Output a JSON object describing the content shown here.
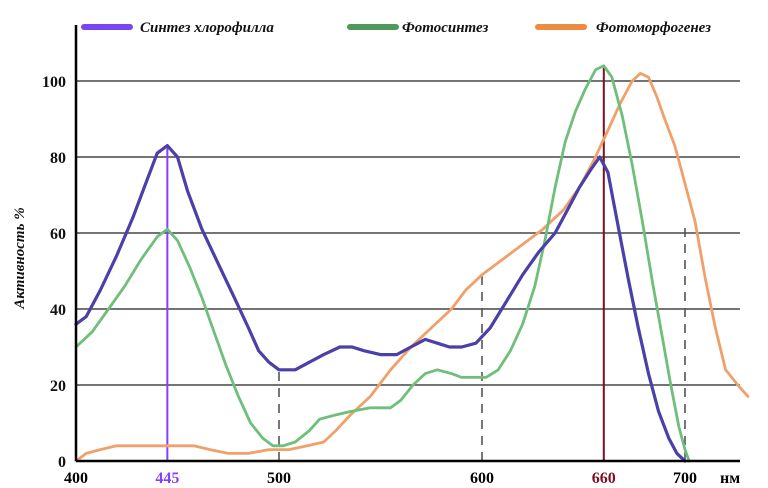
{
  "chart_data": {
    "type": "line",
    "xlabel": "нм",
    "ylabel": "Активность %",
    "xlim": [
      400,
      740
    ],
    "ylim": [
      0,
      110
    ],
    "grid": true,
    "legend_position": "top",
    "x_ticks": [
      {
        "value": 400,
        "label": "400",
        "color": "#000000"
      },
      {
        "value": 445,
        "label": "445",
        "color": "#8a3cff"
      },
      {
        "value": 500,
        "label": "500",
        "color": "#000000"
      },
      {
        "value": 600,
        "label": "600",
        "color": "#000000"
      },
      {
        "value": 660,
        "label": "660",
        "color": "#7a1020"
      },
      {
        "value": 700,
        "label": "700",
        "color": "#000000"
      }
    ],
    "y_ticks": [
      {
        "value": 0,
        "label": "0"
      },
      {
        "value": 20,
        "label": "20"
      },
      {
        "value": 40,
        "label": "40"
      },
      {
        "value": 60,
        "label": "60"
      },
      {
        "value": 80,
        "label": "80"
      },
      {
        "value": 100,
        "label": "100"
      }
    ],
    "markers": [
      {
        "x": 445,
        "color": "#8a3cff",
        "style": "solid",
        "y_top": 83
      },
      {
        "x": 500,
        "color": "#555555",
        "style": "dashed",
        "y_top": 24
      },
      {
        "x": 600,
        "color": "#555555",
        "style": "dashed",
        "y_top": 49
      },
      {
        "x": 660,
        "color": "#7a1020",
        "style": "solid",
        "y_top": 104
      },
      {
        "x": 700,
        "color": "#555555",
        "style": "dashed",
        "y_top": 62
      }
    ],
    "series": [
      {
        "name": "Синтез хлорофилла",
        "color": "#4b3fa8",
        "legend_color": "#7a46f2",
        "points": [
          [
            400,
            36
          ],
          [
            405,
            38
          ],
          [
            412,
            45
          ],
          [
            420,
            54
          ],
          [
            428,
            64
          ],
          [
            435,
            74
          ],
          [
            440,
            81
          ],
          [
            445,
            83
          ],
          [
            450,
            80
          ],
          [
            455,
            71
          ],
          [
            462,
            61
          ],
          [
            470,
            52
          ],
          [
            478,
            43
          ],
          [
            485,
            35
          ],
          [
            490,
            29
          ],
          [
            495,
            26
          ],
          [
            500,
            24
          ],
          [
            508,
            24
          ],
          [
            515,
            26
          ],
          [
            522,
            28
          ],
          [
            530,
            30
          ],
          [
            536,
            30
          ],
          [
            542,
            29
          ],
          [
            550,
            28
          ],
          [
            558,
            28
          ],
          [
            565,
            30
          ],
          [
            572,
            32
          ],
          [
            578,
            31
          ],
          [
            584,
            30
          ],
          [
            590,
            30
          ],
          [
            597,
            31
          ],
          [
            604,
            35
          ],
          [
            612,
            42
          ],
          [
            620,
            49
          ],
          [
            628,
            55
          ],
          [
            636,
            60
          ],
          [
            642,
            66
          ],
          [
            648,
            72
          ],
          [
            654,
            77
          ],
          [
            658,
            80
          ],
          [
            662,
            76
          ],
          [
            667,
            62
          ],
          [
            672,
            48
          ],
          [
            677,
            35
          ],
          [
            682,
            23
          ],
          [
            687,
            13
          ],
          [
            692,
            6
          ],
          [
            696,
            2
          ],
          [
            700,
            0
          ]
        ]
      },
      {
        "name": "Фотосинтез",
        "color": "#6fbf7b",
        "legend_color": "#4f9a5a",
        "points": [
          [
            400,
            30
          ],
          [
            408,
            34
          ],
          [
            416,
            40
          ],
          [
            424,
            46
          ],
          [
            432,
            53
          ],
          [
            440,
            59
          ],
          [
            445,
            61
          ],
          [
            450,
            58
          ],
          [
            456,
            51
          ],
          [
            462,
            43
          ],
          [
            468,
            34
          ],
          [
            474,
            25
          ],
          [
            480,
            17
          ],
          [
            486,
            10
          ],
          [
            492,
            6
          ],
          [
            497,
            4
          ],
          [
            502,
            4
          ],
          [
            508,
            5
          ],
          [
            515,
            8
          ],
          [
            520,
            11
          ],
          [
            527,
            12
          ],
          [
            535,
            13
          ],
          [
            545,
            14
          ],
          [
            555,
            14
          ],
          [
            560,
            16
          ],
          [
            566,
            20
          ],
          [
            572,
            23
          ],
          [
            578,
            24
          ],
          [
            585,
            23
          ],
          [
            590,
            22
          ],
          [
            596,
            22
          ],
          [
            602,
            22
          ],
          [
            608,
            24
          ],
          [
            614,
            29
          ],
          [
            620,
            36
          ],
          [
            626,
            46
          ],
          [
            631,
            58
          ],
          [
            636,
            72
          ],
          [
            641,
            84
          ],
          [
            646,
            92
          ],
          [
            651,
            98
          ],
          [
            656,
            103
          ],
          [
            660,
            104
          ],
          [
            664,
            101
          ],
          [
            669,
            91
          ],
          [
            674,
            78
          ],
          [
            679,
            63
          ],
          [
            684,
            47
          ],
          [
            689,
            32
          ],
          [
            693,
            20
          ],
          [
            697,
            9
          ],
          [
            700,
            3
          ],
          [
            702,
            0
          ]
        ]
      },
      {
        "name": "Фотоморфогенез",
        "color": "#f0a06a",
        "legend_color": "#f08a40",
        "points": [
          [
            400,
            0
          ],
          [
            405,
            2
          ],
          [
            412,
            3
          ],
          [
            420,
            4
          ],
          [
            430,
            4
          ],
          [
            440,
            4
          ],
          [
            450,
            4
          ],
          [
            458,
            4
          ],
          [
            466,
            3
          ],
          [
            475,
            2
          ],
          [
            485,
            2
          ],
          [
            495,
            3
          ],
          [
            505,
            3
          ],
          [
            514,
            4
          ],
          [
            522,
            5
          ],
          [
            528,
            8
          ],
          [
            535,
            12
          ],
          [
            545,
            17
          ],
          [
            555,
            24
          ],
          [
            565,
            30
          ],
          [
            575,
            35
          ],
          [
            585,
            40
          ],
          [
            592,
            45
          ],
          [
            600,
            49
          ],
          [
            610,
            53
          ],
          [
            620,
            57
          ],
          [
            630,
            61
          ],
          [
            640,
            66
          ],
          [
            648,
            72
          ],
          [
            655,
            79
          ],
          [
            662,
            87
          ],
          [
            668,
            94
          ],
          [
            674,
            100
          ],
          [
            678,
            102
          ],
          [
            682,
            101
          ],
          [
            686,
            96
          ],
          [
            690,
            90
          ],
          [
            695,
            83
          ],
          [
            700,
            73
          ],
          [
            705,
            63
          ],
          [
            710,
            48
          ],
          [
            715,
            35
          ],
          [
            720,
            24
          ],
          [
            726,
            20
          ],
          [
            731,
            17
          ]
        ]
      }
    ]
  }
}
